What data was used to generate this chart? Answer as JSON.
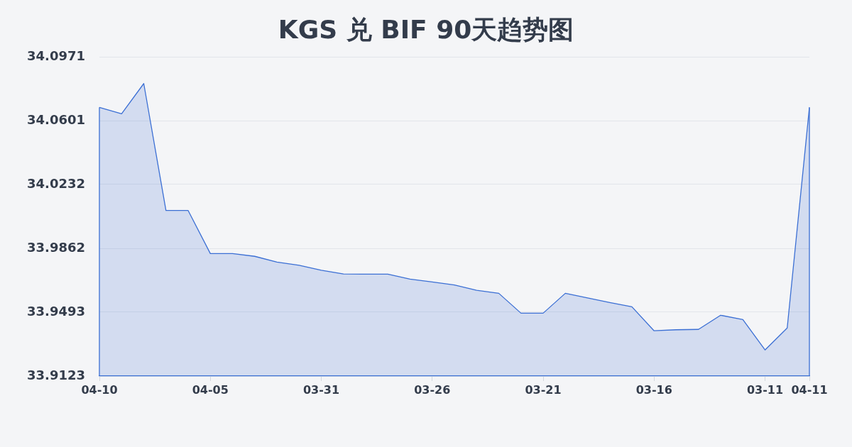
{
  "chart_data": {
    "type": "area",
    "title": "KGS 兑 BIF 90天趋势图",
    "categories": [
      "04-10",
      null,
      null,
      null,
      null,
      "04-05",
      null,
      null,
      null,
      null,
      "03-31",
      null,
      null,
      null,
      null,
      "03-26",
      null,
      null,
      null,
      null,
      "03-21",
      null,
      null,
      null,
      null,
      "03-16",
      null,
      null,
      null,
      null,
      "03-11",
      null,
      "04-11"
    ],
    "series": [
      {
        "color": "#3b6fd4",
        "values": [
          34.0678,
          34.0641,
          34.0816,
          34.0081,
          34.0081,
          33.9832,
          33.9832,
          33.9816,
          33.9783,
          33.9764,
          33.9735,
          33.9714,
          33.9713,
          33.9713,
          33.9684,
          33.9668,
          33.965,
          33.9619,
          33.9602,
          33.9487,
          33.9487,
          33.9602,
          33.9575,
          33.9549,
          33.9524,
          33.9385,
          33.9391,
          33.9393,
          33.9475,
          33.945,
          33.9274,
          33.9401,
          34.0678
        ]
      }
    ],
    "ylim": [
      33.9123,
      34.0971
    ],
    "yticks": [
      33.9123,
      33.9493,
      33.9862,
      34.0232,
      34.0601,
      34.0971
    ],
    "grid": "y",
    "marker": "none"
  }
}
